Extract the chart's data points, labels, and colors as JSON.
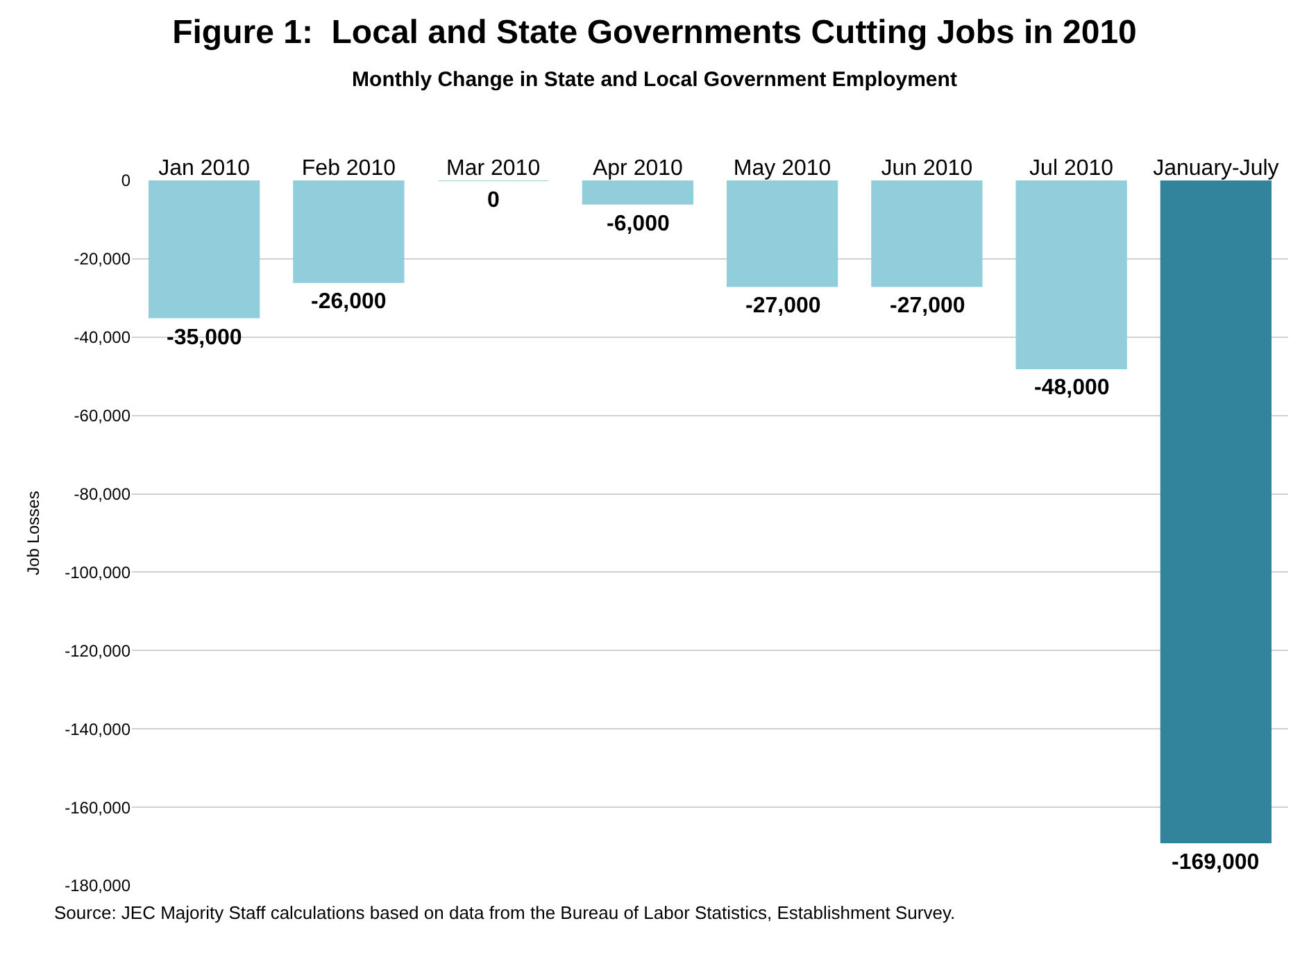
{
  "chart_data": {
    "type": "bar",
    "title": "Figure 1:  Local and State Governments Cutting Jobs in 2010",
    "subtitle": "Monthly Change in State and Local Government Employment",
    "ylabel": "Job Losses",
    "categories": [
      "Jan 2010",
      "Feb 2010",
      "Mar 2010",
      "Apr 2010",
      "May 2010",
      "Jun 2010",
      "Jul 2010",
      "January-July"
    ],
    "values": [
      -35000,
      -26000,
      0,
      -6000,
      -27000,
      -27000,
      -48000,
      -169000
    ],
    "colors": [
      "#92cddc",
      "#92cddc",
      "#92cddc",
      "#92cddc",
      "#92cddc",
      "#92cddc",
      "#92cddc",
      "#31849b"
    ],
    "ylim": [
      -180000,
      0
    ],
    "yticks": [
      {
        "value": 0,
        "label": "0"
      },
      {
        "value": -20000,
        "label": "-20,000"
      },
      {
        "value": -40000,
        "label": "-40,000"
      },
      {
        "value": -60000,
        "label": "-60,000"
      },
      {
        "value": -80000,
        "label": "-80,000"
      },
      {
        "value": -100000,
        "label": "-100,000"
      },
      {
        "value": -120000,
        "label": "-120,000"
      },
      {
        "value": -140000,
        "label": "-140,000"
      },
      {
        "value": -160000,
        "label": "-160,000"
      },
      {
        "value": -180000,
        "label": "-180,000"
      }
    ],
    "value_labels": [
      "-35,000",
      "-26,000",
      "0",
      "-6,000",
      "-27,000",
      "-27,000",
      "-48,000",
      "-169,000"
    ],
    "grid": "y",
    "annotations": [
      "Source: JEC Majority Staff calculations based on data from the Bureau of Labor Statistics, Establishment Survey."
    ]
  }
}
